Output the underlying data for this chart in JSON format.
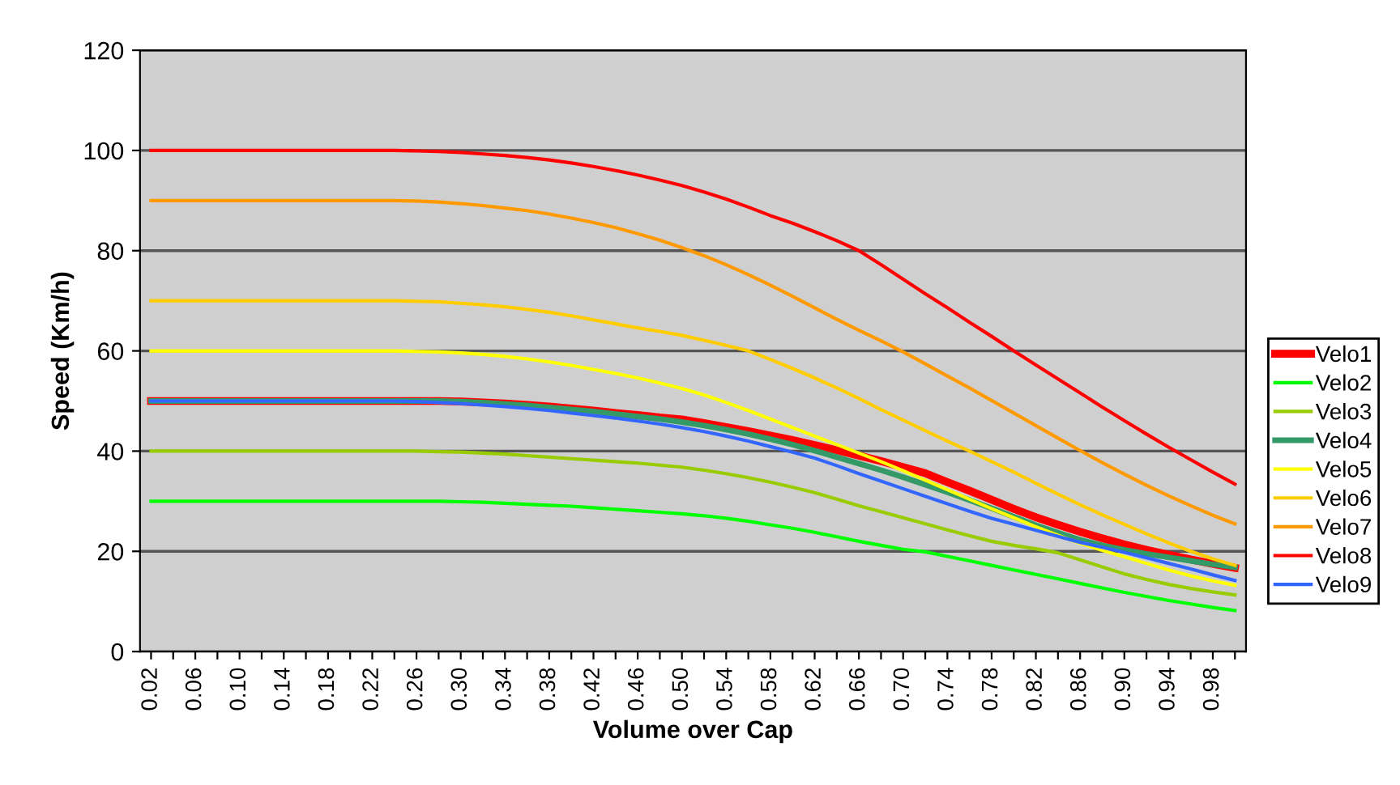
{
  "chart_data": {
    "type": "line",
    "xlabel": "Volume over Cap",
    "ylabel": "Speed (Km/h)",
    "categories": [
      "0.02",
      null,
      "0.06",
      null,
      "0.10",
      null,
      "0.14",
      null,
      "0.18",
      null,
      "0.22",
      null,
      "0.26",
      null,
      "0.30",
      null,
      "0.34",
      null,
      "0.38",
      null,
      "0.42",
      null,
      "0.46",
      null,
      "0.50",
      null,
      "0.54",
      null,
      "0.58",
      null,
      "0.62",
      null,
      "0.66",
      null,
      "0.70",
      null,
      "0.74",
      null,
      "0.78",
      null,
      "0.82",
      null,
      "0.86",
      null,
      "0.90",
      null,
      "0.94",
      null,
      "0.98",
      null
    ],
    "ylim": [
      0,
      120
    ],
    "yticks": [
      0,
      20,
      40,
      60,
      80,
      100,
      120
    ],
    "grid": "y",
    "legend": "right",
    "marker": "none",
    "line_style": "solid",
    "series": [
      {
        "name": "Velo1",
        "color": "#ff0000",
        "values": [
          50,
          50,
          50,
          50,
          50,
          50,
          50,
          50,
          50,
          50,
          50,
          50,
          50,
          50,
          49.9,
          49.7,
          49.5,
          49.2,
          48.9,
          48.5,
          48.1,
          47.6,
          47.2,
          46.7,
          46.3,
          45.6,
          44.8,
          44,
          43.1,
          42.2,
          41.2,
          40.2,
          39.1,
          38,
          36.8,
          35.6,
          33.8,
          32.1,
          30.3,
          28.5,
          26.8,
          25.3,
          23.9,
          22.6,
          21.4,
          20.3,
          19.3,
          18.4,
          17.5,
          16.7
        ]
      },
      {
        "name": "Velo2",
        "color": "#00ff00",
        "values": [
          30,
          30,
          30,
          30,
          30,
          30,
          30,
          30,
          30,
          30,
          30,
          30,
          30,
          30,
          29.9,
          29.8,
          29.6,
          29.4,
          29.2,
          29,
          28.7,
          28.4,
          28.1,
          27.8,
          27.5,
          27.1,
          26.6,
          26,
          25.3,
          24.6,
          23.8,
          22.9,
          22,
          21.2,
          20.4,
          19.9,
          19,
          18.1,
          17.2,
          16.3,
          15.4,
          14.5,
          13.6,
          12.7,
          11.8,
          11,
          10.2,
          9.5,
          8.8,
          8.2
        ]
      },
      {
        "name": "Velo3",
        "color": "#99cc00",
        "values": [
          40,
          40,
          40,
          40,
          40,
          40,
          40,
          40,
          40,
          40,
          40,
          40,
          40,
          39.9,
          39.8,
          39.6,
          39.4,
          39.1,
          38.8,
          38.5,
          38.2,
          37.9,
          37.6,
          37.2,
          36.8,
          36.2,
          35.5,
          34.7,
          33.8,
          32.8,
          31.7,
          30.4,
          29.1,
          27.9,
          26.7,
          25.5,
          24.3,
          23.1,
          22,
          21.2,
          20.5,
          19.7,
          18.3,
          16.9,
          15.5,
          14.4,
          13.4,
          12.6,
          11.9,
          11.3
        ]
      },
      {
        "name": "Velo4",
        "color": "#339966",
        "values": [
          50,
          50,
          50,
          50,
          50,
          50,
          50,
          50,
          50,
          50,
          50,
          50,
          50,
          50,
          49.9,
          49.7,
          49.4,
          49.1,
          48.7,
          48.3,
          47.9,
          47.4,
          46.9,
          46.4,
          45.8,
          45.1,
          44.3,
          43.4,
          42.4,
          41.3,
          40.1,
          38.8,
          37.5,
          36.2,
          34.8,
          33.3,
          31.8,
          30.2,
          28.6,
          26.9,
          25.2,
          23.7,
          22.3,
          21.2,
          20.3,
          19.5,
          18.8,
          18.1,
          17.4,
          16.8
        ]
      },
      {
        "name": "Velo5",
        "color": "#ffff00",
        "values": [
          60,
          60,
          60,
          60,
          60,
          60,
          60,
          60,
          60,
          60,
          60,
          60,
          59.9,
          59.8,
          59.6,
          59.3,
          58.9,
          58.4,
          57.8,
          57.1,
          56.3,
          55.5,
          54.6,
          53.6,
          52.5,
          51.2,
          49.7,
          48.1,
          46.4,
          44.7,
          43,
          41.3,
          39.6,
          37.9,
          36.1,
          34.2,
          32.3,
          30.4,
          28.5,
          26.7,
          24.9,
          23.2,
          21.6,
          20.2,
          18.9,
          17.6,
          16.3,
          15.1,
          14.1,
          13.2
        ]
      },
      {
        "name": "Velo6",
        "color": "#ffcc00",
        "values": [
          70,
          70,
          70,
          70,
          70,
          70,
          70,
          70,
          70,
          70,
          70,
          70,
          69.9,
          69.8,
          69.5,
          69.2,
          68.8,
          68.3,
          67.7,
          67,
          66.2,
          65.4,
          64.6,
          63.9,
          63.1,
          62.1,
          61.1,
          60,
          58.3,
          56.5,
          54.6,
          52.6,
          50.5,
          48.3,
          46.2,
          44.1,
          42,
          40,
          37.9,
          35.8,
          33.6,
          31.4,
          29.3,
          27.3,
          25.4,
          23.5,
          21.7,
          20,
          18.5,
          17.2
        ]
      },
      {
        "name": "Velo7",
        "color": "#ff9900",
        "values": [
          90,
          90,
          90,
          90,
          90,
          90,
          90,
          90,
          90,
          90,
          90,
          90,
          89.9,
          89.7,
          89.4,
          89,
          88.5,
          88,
          87.3,
          86.5,
          85.6,
          84.6,
          83.4,
          82.1,
          80.6,
          79,
          77.2,
          75.2,
          73.1,
          70.9,
          68.6,
          66.3,
          64.1,
          62,
          59.8,
          57.4,
          55,
          52.6,
          50.1,
          47.6,
          45.1,
          42.6,
          40.1,
          37.7,
          35.4,
          33.2,
          31.1,
          29.1,
          27.2,
          25.5
        ]
      },
      {
        "name": "Velo8",
        "color": "#ff0000",
        "values": [
          100,
          100,
          100,
          100,
          100,
          100,
          100,
          100,
          100,
          100,
          100,
          100,
          99.9,
          99.8,
          99.6,
          99.3,
          99,
          98.6,
          98.1,
          97.5,
          96.8,
          96,
          95.1,
          94.1,
          93,
          91.7,
          90.3,
          88.7,
          87,
          85.5,
          83.8,
          82,
          80,
          77.2,
          74.3,
          71.4,
          68.6,
          65.7,
          62.9,
          60,
          57.2,
          54.4,
          51.6,
          48.8,
          46.1,
          43.4,
          40.8,
          38.3,
          35.8,
          33.4
        ]
      },
      {
        "name": "Velo9",
        "color": "#3366ff",
        "values": [
          50,
          50,
          50,
          50,
          50,
          50,
          50,
          50,
          50,
          50,
          50,
          50,
          49.9,
          49.7,
          49.5,
          49.2,
          48.9,
          48.5,
          48.1,
          47.6,
          47.1,
          46.6,
          46,
          45.4,
          44.7,
          43.9,
          43,
          42,
          40.9,
          39.8,
          38.6,
          37.1,
          35.5,
          34,
          32.5,
          31,
          29.5,
          28,
          26.6,
          25.4,
          24.2,
          23,
          21.8,
          20.8,
          19.8,
          18.7,
          17.6,
          16.5,
          15.3,
          14.2
        ]
      }
    ]
  }
}
